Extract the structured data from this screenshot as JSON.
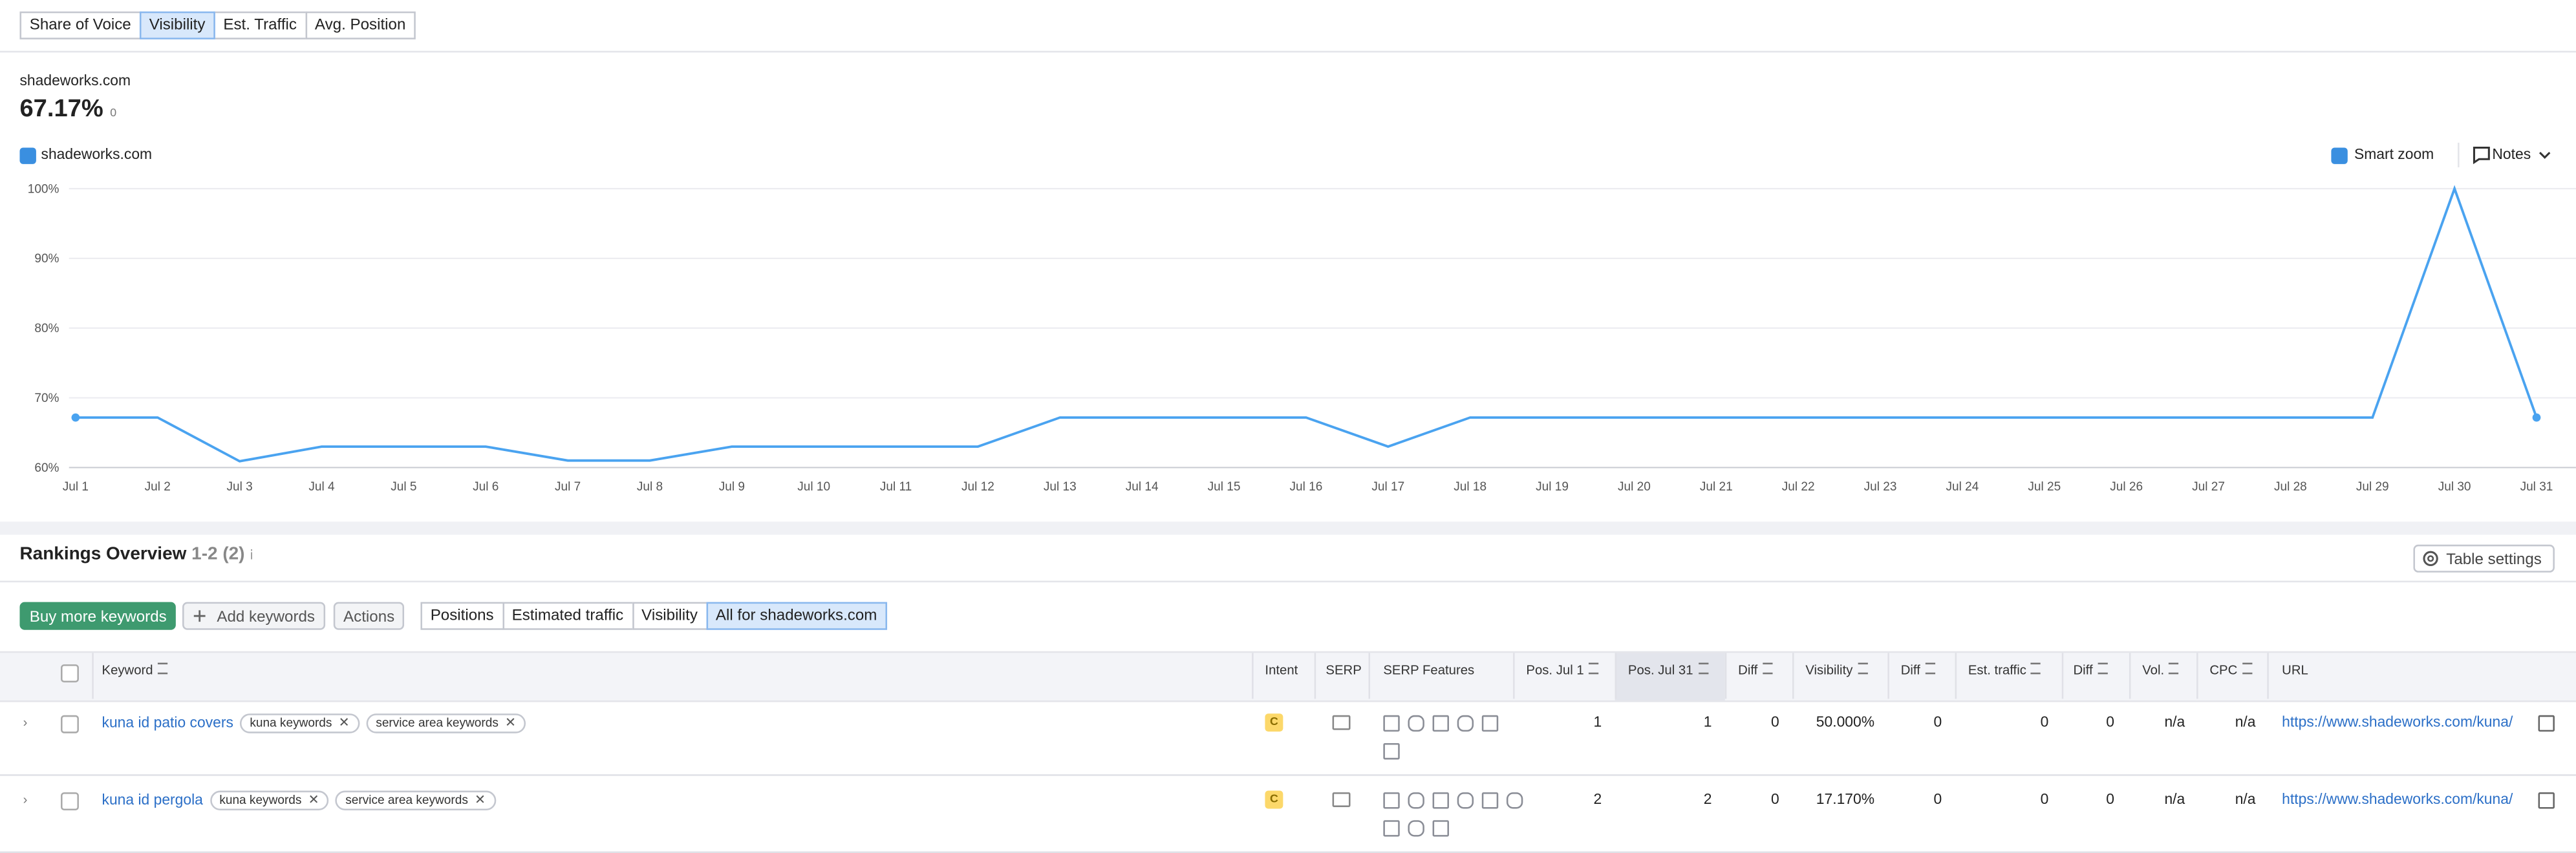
{
  "tabs": [
    "Share of Voice",
    "Visibility",
    "Est. Traffic",
    "Avg. Position"
  ],
  "active_tab": 1,
  "summary": {
    "domain": "shadeworks.com",
    "value": "67.17%",
    "change": "0"
  },
  "legend": "shadeworks.com",
  "smart_zoom": "Smart zoom",
  "notes": "Notes",
  "chart": {
    "type": "line",
    "color": "#4aa3f0",
    "categories": [
      "Jul 1",
      "Jul 2",
      "Jul 3",
      "Jul 4",
      "Jul 5",
      "Jul 6",
      "Jul 7",
      "Jul 8",
      "Jul 9",
      "Jul 10",
      "Jul 11",
      "Jul 12",
      "Jul 13",
      "Jul 14",
      "Jul 15",
      "Jul 16",
      "Jul 17",
      "Jul 18",
      "Jul 19",
      "Jul 20",
      "Jul 21",
      "Jul 22",
      "Jul 23",
      "Jul 24",
      "Jul 25",
      "Jul 26",
      "Jul 27",
      "Jul 28",
      "Jul 29",
      "Jul 30",
      "Jul 31"
    ],
    "values": [
      67.17,
      67.17,
      60.9,
      63,
      63,
      63,
      61,
      61,
      63,
      63,
      63,
      63,
      67.17,
      67.17,
      67.17,
      67.17,
      63,
      67.17,
      67.17,
      67.17,
      67.17,
      67.17,
      67.17,
      67.17,
      67.17,
      67.17,
      67.17,
      67.17,
      67.17,
      100,
      67.17
    ],
    "ylim": [
      60,
      100
    ],
    "yticks": [
      {
        "value": 60,
        "label": "60%"
      },
      {
        "value": 70,
        "label": "70%"
      },
      {
        "value": 80,
        "label": "80%"
      },
      {
        "value": 90,
        "label": "90%"
      },
      {
        "value": 100,
        "label": "100%"
      }
    ],
    "grid": true
  },
  "rankings": {
    "title": "Rankings Overview",
    "count": "1-2 (2)",
    "buy": "Buy more keywords",
    "add": "Add keywords",
    "actions": "Actions",
    "filters": [
      "Positions",
      "Estimated traffic",
      "Visibility",
      "All for shadeworks.com"
    ],
    "active_filter": 3,
    "table_settings": "Table settings",
    "columns": [
      "Keyword",
      "Intent",
      "SERP",
      "SERP Features",
      "Pos. Jul 1",
      "Pos. Jul 31",
      "Diff",
      "Visibility",
      "Diff",
      "Est. traffic",
      "Diff",
      "Vol.",
      "CPC",
      "URL"
    ],
    "rows": [
      {
        "keyword": "kuna id patio covers",
        "tags": [
          "kuna keywords",
          "service area keywords"
        ],
        "intent": "C",
        "cells": [
          1,
          1,
          0,
          "50.000%",
          0,
          0,
          0,
          "n/a",
          "n/a"
        ],
        "url": "https://www.shadeworks.com/kuna/"
      },
      {
        "keyword": "kuna id pergola",
        "tags": [
          "kuna keywords",
          "service area keywords"
        ],
        "intent": "C",
        "cells": [
          2,
          2,
          0,
          "17.170%",
          0,
          0,
          0,
          "n/a",
          "n/a"
        ],
        "url": "https://www.shadeworks.com/kuna/"
      }
    ]
  }
}
